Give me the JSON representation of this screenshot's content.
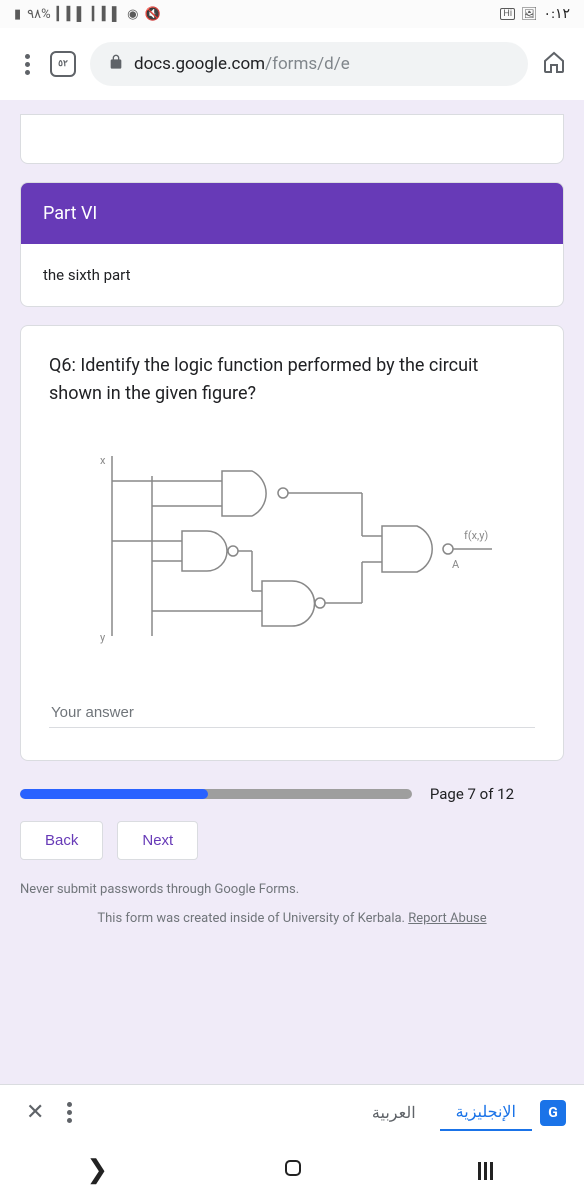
{
  "status": {
    "battery": "٩٨%",
    "time": "٠:١٢"
  },
  "browser": {
    "tab_count": "٥٢",
    "url_host": "docs.google.com",
    "url_path": "/forms/d/e"
  },
  "section": {
    "title": "Part VI",
    "description": "the sixth part"
  },
  "question": {
    "text": "Q6: Identify the logic function performed by the circuit shown in the given figure?",
    "answer_placeholder": "Your answer",
    "output_label": "f(x,y)",
    "node_label": "A",
    "input_x": "x",
    "input_y": "y"
  },
  "progress": {
    "percent": 48,
    "page_text": "Page 7 of 12"
  },
  "nav": {
    "back": "Back",
    "next": "Next"
  },
  "footer": {
    "warning": "Never submit passwords through Google Forms.",
    "info_prefix": "This form was created inside of University of Kerbala. ",
    "report": "Report Abuse"
  },
  "translate": {
    "lang_active": "الإنجليزية",
    "lang_other": "العربية",
    "badge": "G"
  },
  "colors": {
    "accent": "#673ab7",
    "progress": "#2962ff"
  }
}
